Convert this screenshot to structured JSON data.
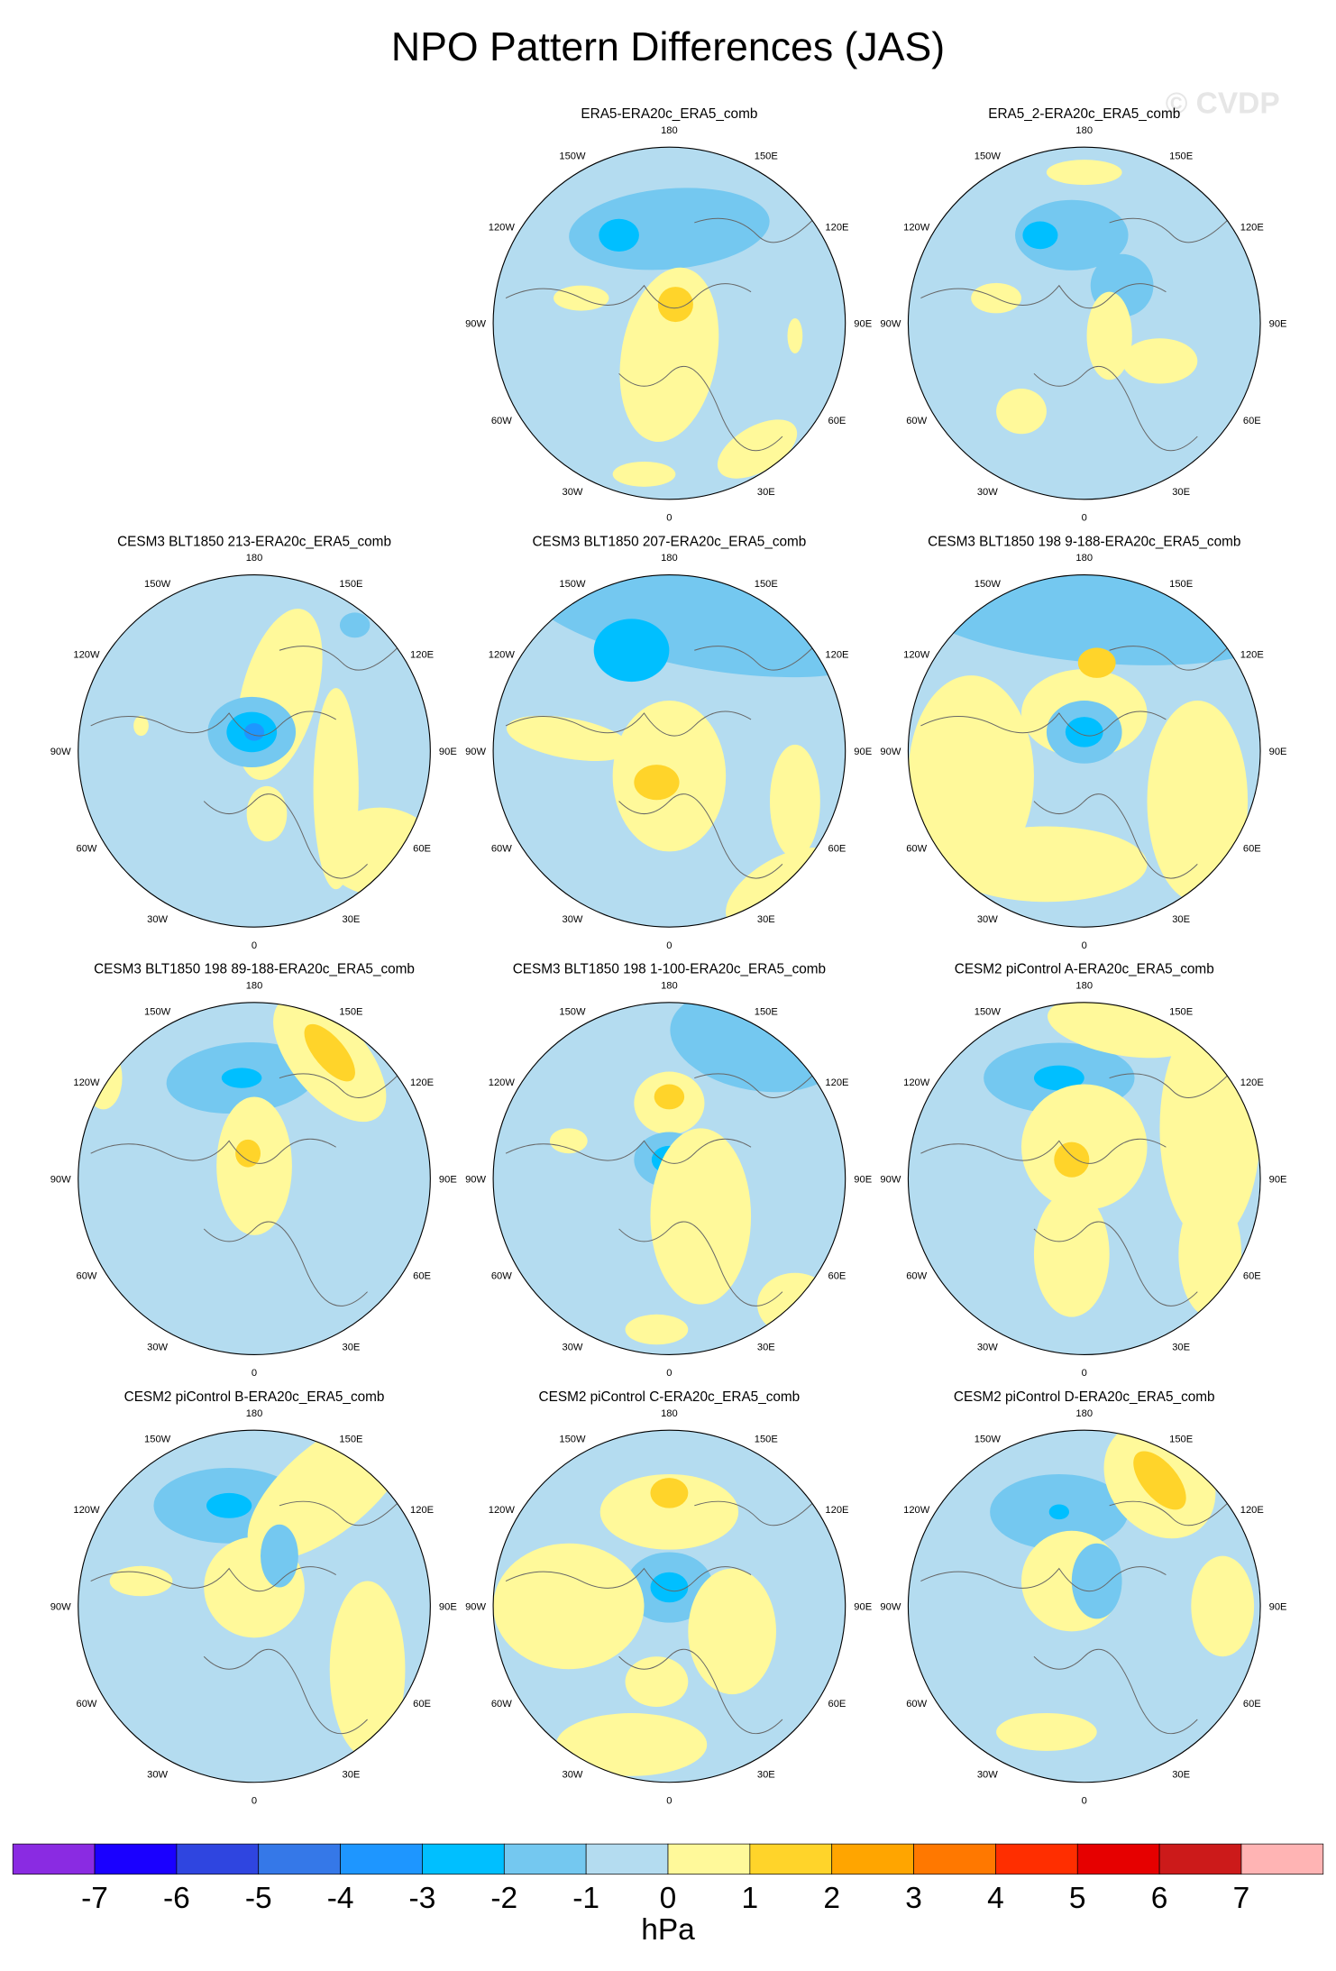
{
  "title": "NPO Pattern Differences (JAS)",
  "watermark": "© CVDP",
  "panels": [
    {
      "title": "ERA5-ERA20c_ERA5_comb"
    },
    {
      "title": "ERA5_2-ERA20c_ERA5_comb"
    },
    {
      "title": "CESM3 BLT1850 213-ERA20c_ERA5_comb"
    },
    {
      "title": "CESM3 BLT1850 207-ERA20c_ERA5_comb"
    },
    {
      "title": "CESM3 BLT1850 198 9-188-ERA20c_ERA5_comb"
    },
    {
      "title": "CESM3 BLT1850 198 89-188-ERA20c_ERA5_comb"
    },
    {
      "title": "CESM3 BLT1850 198 1-100-ERA20c_ERA5_comb"
    },
    {
      "title": "CESM2 piControl A-ERA20c_ERA5_comb"
    },
    {
      "title": "CESM2 piControl B-ERA20c_ERA5_comb"
    },
    {
      "title": "CESM2 piControl C-ERA20c_ERA5_comb"
    },
    {
      "title": "CESM2 piControl D-ERA20c_ERA5_comb"
    }
  ],
  "lon_labels": [
    "180",
    "150E",
    "120E",
    "90E",
    "60E",
    "30E",
    "0",
    "30W",
    "60W",
    "90W",
    "120W",
    "150W"
  ],
  "colorbar": {
    "labels": [
      -7,
      -6,
      -5,
      -4,
      -3,
      -2,
      -1,
      0,
      1,
      2,
      3,
      4,
      5,
      6,
      7
    ],
    "colors": [
      "#8a2be2",
      "#1a00ff",
      "#2f45e0",
      "#3578e8",
      "#1e96ff",
      "#00bfff",
      "#74c8f0",
      "#b4dcf0",
      "#fff99a",
      "#ffd42a",
      "#ffa500",
      "#ff7800",
      "#ff2e00",
      "#e60000",
      "#cc1a1a",
      "#ffb4b4"
    ],
    "unit": "hPa"
  }
}
